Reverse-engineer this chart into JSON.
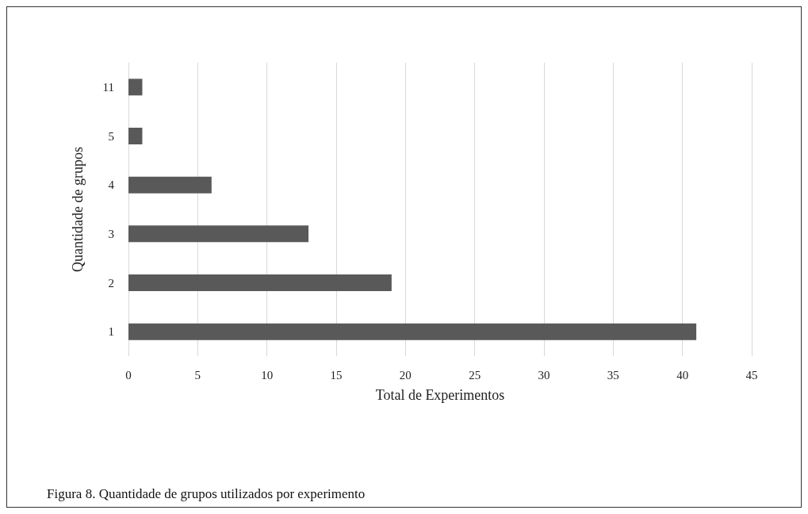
{
  "chart_data": {
    "type": "bar",
    "orientation": "horizontal",
    "categories": [
      "11",
      "5",
      "4",
      "3",
      "2",
      "1"
    ],
    "values": [
      1,
      1,
      6,
      13,
      19,
      41
    ],
    "color": "#595959",
    "xlabel": "Total de Experimentos",
    "ylabel": "Quantidade de grupos",
    "xlim": [
      0,
      45
    ],
    "xticks": [
      0,
      5,
      10,
      15,
      20,
      25,
      30,
      35,
      40,
      45
    ],
    "grid": "x",
    "annotations": [
      "Figura 8. Quantidade de grupos utilizados por experimento"
    ]
  }
}
